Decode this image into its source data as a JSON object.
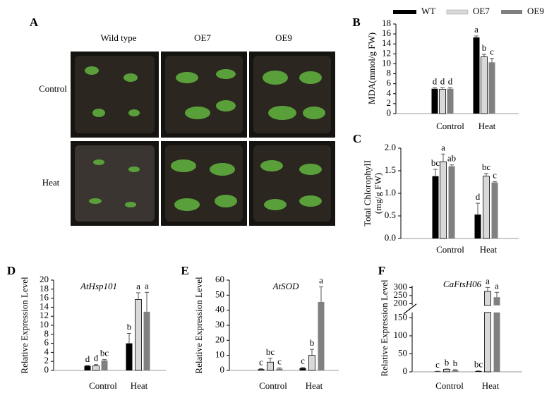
{
  "panel_a": {
    "label": "A",
    "columns": [
      "Wild type",
      "OE7",
      "OE9"
    ],
    "rows": [
      "Control",
      "Heat"
    ]
  },
  "legend": {
    "items": [
      {
        "name": "WT",
        "color": "#000000"
      },
      {
        "name": "OE7",
        "color": "#d9d9d9"
      },
      {
        "name": "OE9",
        "color": "#808080"
      }
    ]
  },
  "chart_data": [
    {
      "type": "bar",
      "panel": "B",
      "ylabel": "MDA(mmol/g FW)",
      "categories": [
        "Control",
        "Heat"
      ],
      "ylim": [
        0,
        18
      ],
      "yticks": [
        0,
        2,
        4,
        6,
        8,
        10,
        12,
        14,
        16,
        18
      ],
      "series": [
        {
          "values": [
            5,
            15.3
          ],
          "errors": [
            0.2,
            0.3
          ],
          "labels": [
            "d",
            "a"
          ]
        },
        {
          "values": [
            4.9,
            11.4
          ],
          "errors": [
            0.3,
            0.5
          ],
          "labels": [
            "d",
            "b"
          ]
        },
        {
          "values": [
            5,
            10.3
          ],
          "errors": [
            0.2,
            0.8
          ],
          "labels": [
            "d",
            "c"
          ]
        }
      ]
    },
    {
      "type": "bar",
      "panel": "C",
      "ylabel": [
        "Total ChlorophyII",
        "(mg/g FW)"
      ],
      "categories": [
        "Control",
        "Heat"
      ],
      "ylim": [
        0,
        2
      ],
      "yticks": [
        {
          "value": 0,
          "label": "0.0"
        },
        0.5,
        {
          "value": 1,
          "label": "1.0"
        },
        1.5,
        {
          "value": 2,
          "label": "2.0"
        }
      ],
      "series": [
        {
          "values": [
            1.38,
            0.53
          ],
          "errors": [
            0.15,
            0.25
          ],
          "labels": [
            "bc",
            "d"
          ]
        },
        {
          "values": [
            1.7,
            1.38
          ],
          "errors": [
            0.17,
            0.06
          ],
          "labels": [
            "a",
            "bc"
          ]
        },
        {
          "values": [
            1.6,
            1.24
          ],
          "errors": [
            0.03,
            0.02
          ],
          "labels": [
            "ab",
            "c"
          ]
        }
      ]
    },
    {
      "type": "bar",
      "panel": "D",
      "title": "AtHsp101",
      "ylabel": "Relative Expression Level",
      "categories": [
        "Control",
        "Heat"
      ],
      "ylim": [
        0,
        20
      ],
      "yticks": [
        0,
        2,
        4,
        6,
        8,
        10,
        12,
        14,
        16,
        18,
        20
      ],
      "series": [
        {
          "values": [
            1,
            6
          ],
          "errors": [
            0.1,
            2.2
          ],
          "labels": [
            "d",
            "b"
          ]
        },
        {
          "values": [
            1,
            15.7
          ],
          "errors": [
            0.3,
            1.5
          ],
          "labels": [
            "d",
            "a"
          ]
        },
        {
          "values": [
            2.2,
            13
          ],
          "errors": [
            0.2,
            4.3
          ],
          "labels": [
            "bc",
            "a"
          ]
        }
      ]
    },
    {
      "type": "bar",
      "panel": "E",
      "title": "AtSOD",
      "ylabel": "Relative Expression Level",
      "categories": [
        "Control",
        "Heat"
      ],
      "ylim": [
        0,
        60
      ],
      "yticks": [
        0,
        10,
        20,
        30,
        40,
        50,
        60
      ],
      "series": [
        {
          "values": [
            0.8,
            1.5
          ],
          "errors": [
            0.3,
            0.5
          ],
          "labels": [
            "c",
            "c"
          ]
        },
        {
          "values": [
            5.5,
            10
          ],
          "errors": [
            2.5,
            4
          ],
          "labels": [
            "bc",
            "b"
          ]
        },
        {
          "values": [
            1.2,
            45.5
          ],
          "errors": [
            0.5,
            10
          ],
          "labels": [
            "c",
            "a"
          ]
        }
      ]
    },
    {
      "type": "bar",
      "panel": "F",
      "title": "CaFtsH06",
      "ylabel": "Relative Expression Level",
      "categories": [
        "Control",
        "Heat"
      ],
      "ylim": [
        0,
        310
      ],
      "ybreak": [
        165,
        190
      ],
      "yticks": [
        0,
        50,
        100,
        150,
        200,
        250,
        300
      ],
      "series": [
        {
          "values": [
            1,
            2
          ],
          "errors": [
            0.5,
            0.5
          ],
          "labels": [
            "c",
            "bc"
          ]
        },
        {
          "values": [
            7,
            275
          ],
          "errors": [
            1,
            25
          ],
          "labels": [
            "b",
            "a"
          ]
        },
        {
          "values": [
            4.5,
            240
          ],
          "errors": [
            1.5,
            30
          ],
          "labels": [
            "b",
            "a"
          ]
        }
      ]
    }
  ]
}
